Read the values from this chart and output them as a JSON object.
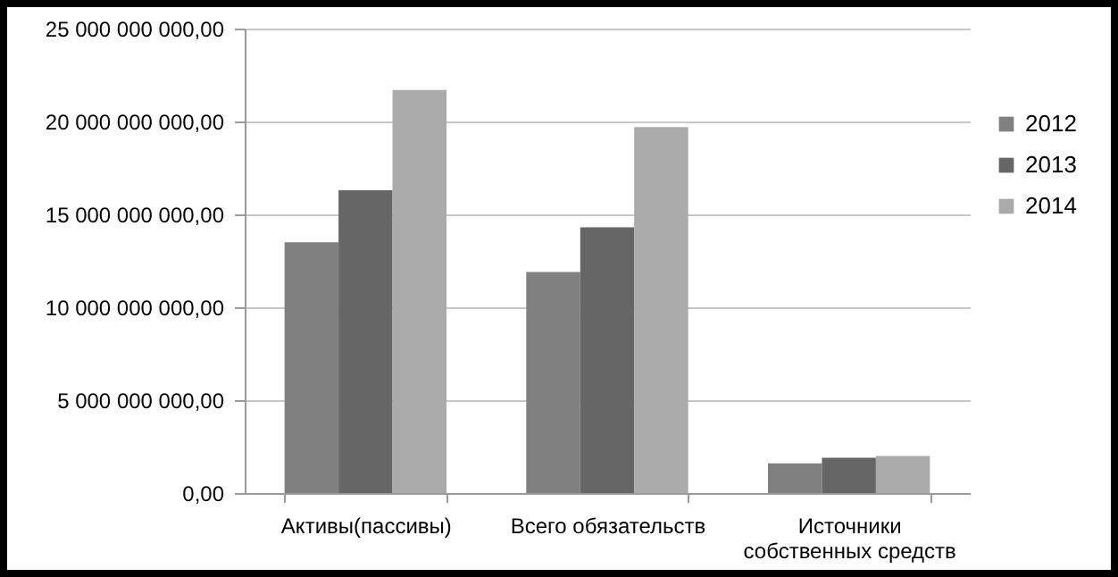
{
  "chart_data": {
    "type": "bar",
    "categories": [
      "Активы(пассивы)",
      "Всего обязательств",
      "Источники собственных средств"
    ],
    "series": [
      {
        "name": "2012",
        "color": "#808080",
        "values": [
          13500000000,
          11900000000,
          1600000000
        ]
      },
      {
        "name": "2013",
        "color": "#666666",
        "values": [
          16300000000,
          14300000000,
          1900000000
        ]
      },
      {
        "name": "2014",
        "color": "#aaaaaa",
        "values": [
          21700000000,
          19700000000,
          2000000000
        ]
      }
    ],
    "ylim": [
      0,
      25000000000
    ],
    "yticks": [
      {
        "value": 0,
        "label": "0,00"
      },
      {
        "value": 5000000000,
        "label": "5 000 000 000,00"
      },
      {
        "value": 10000000000,
        "label": "10 000 000 000,00"
      },
      {
        "value": 15000000000,
        "label": "15 000 000 000,00"
      },
      {
        "value": 20000000000,
        "label": "20 000 000 000,00"
      },
      {
        "value": 25000000000,
        "label": "25 000 000 000,00"
      }
    ],
    "grid": "y",
    "legend": "right"
  }
}
